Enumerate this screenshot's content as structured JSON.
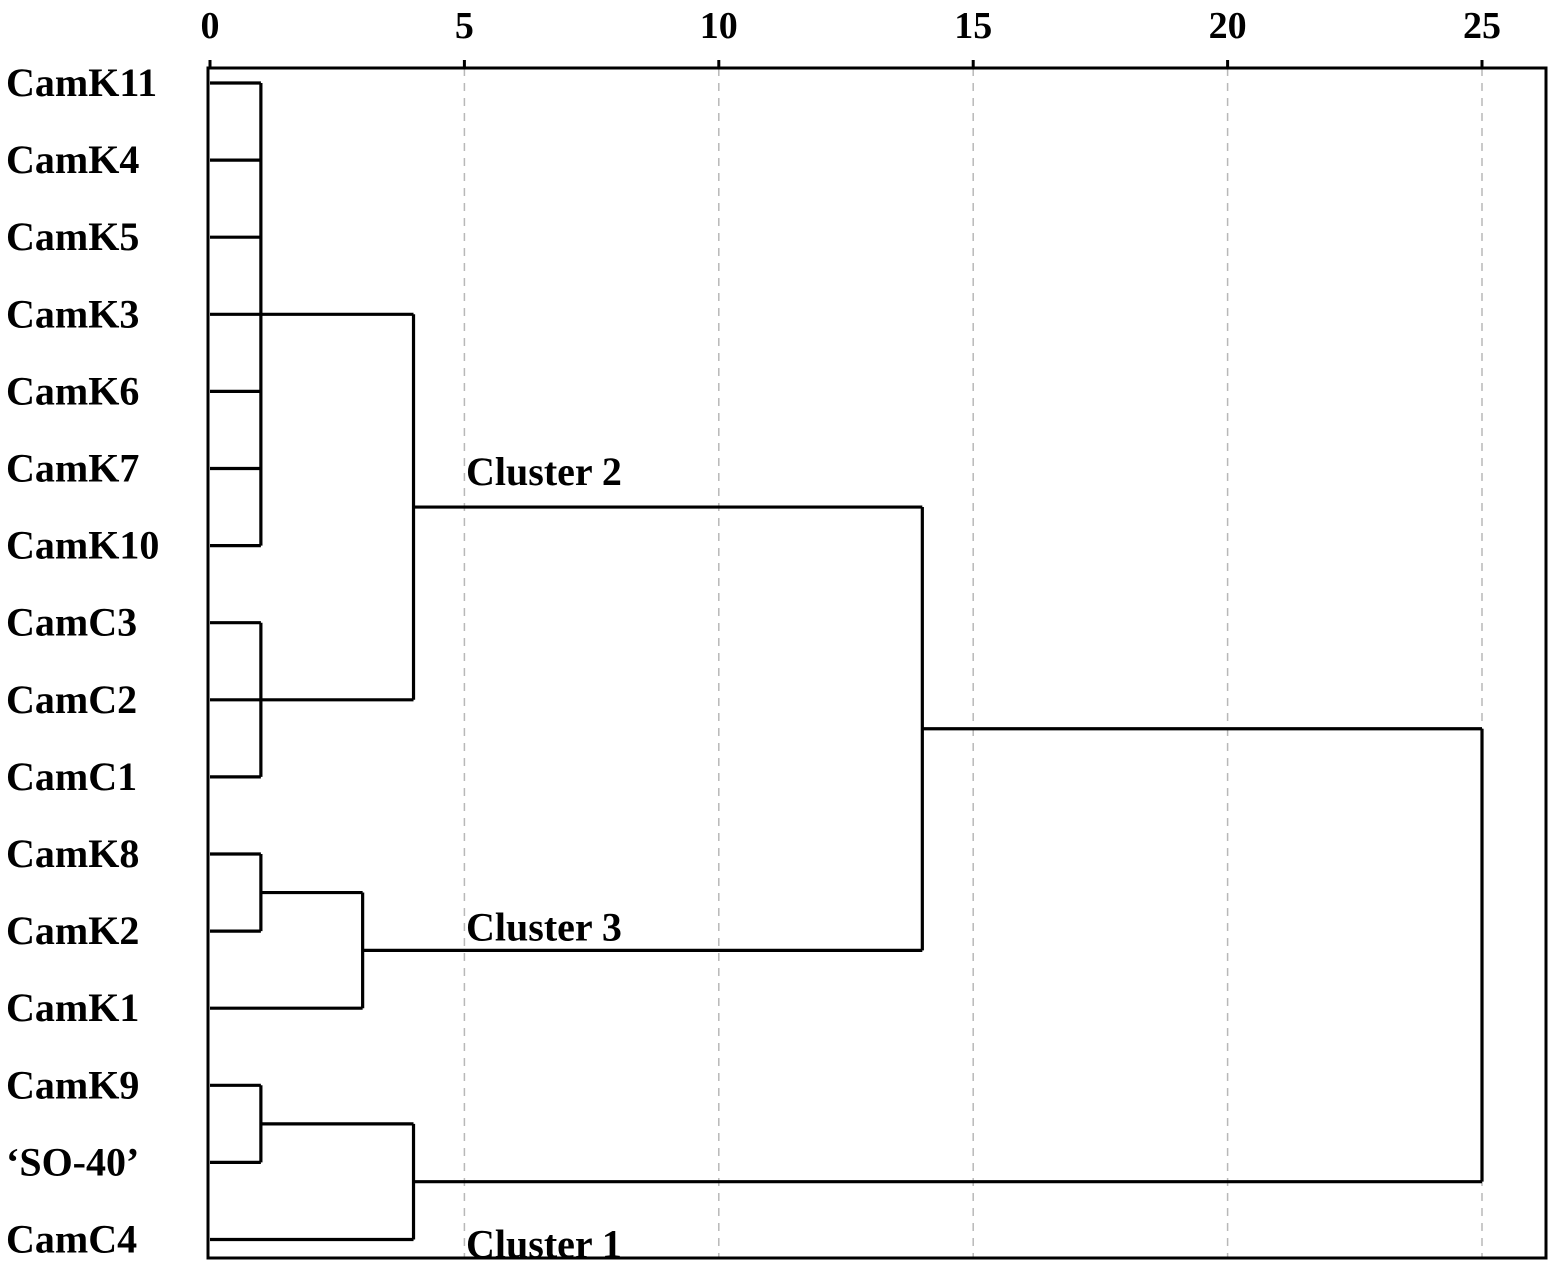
{
  "chart_data": {
    "type": "dendrogram",
    "xlim": [
      0,
      25
    ],
    "x_ticks": [
      "0",
      "5",
      "10",
      "15",
      "20",
      "25"
    ],
    "grid": "vertical dashed",
    "leaves": [
      "CamK11",
      "CamK4",
      "CamK5",
      "CamK3",
      "CamK6",
      "CamK7",
      "CamK10",
      "CamC3",
      "CamC2",
      "CamC1",
      "CamK8",
      "CamK2",
      "CamK1",
      "CamK9",
      "‘SO-40’",
      "CamC4"
    ],
    "merges": [
      {
        "id": "A",
        "height": 1,
        "children": [
          "CamK11",
          "CamK4",
          "CamK5",
          "CamK3",
          "CamK6",
          "CamK7",
          "CamK10"
        ]
      },
      {
        "id": "B",
        "height": 1,
        "children": [
          "CamC3",
          "CamC2",
          "CamC1"
        ]
      },
      {
        "id": "C",
        "height": 4,
        "children": [
          "A",
          "B"
        ]
      },
      {
        "id": "D",
        "height": 1,
        "children": [
          "CamK8",
          "CamK2"
        ]
      },
      {
        "id": "E",
        "height": 3,
        "children": [
          "D",
          "CamK1"
        ]
      },
      {
        "id": "F",
        "height": 14,
        "children": [
          "C",
          "E"
        ]
      },
      {
        "id": "G",
        "height": 1,
        "children": [
          "CamK9",
          "‘SO-40’"
        ]
      },
      {
        "id": "H",
        "height": 4,
        "children": [
          "G",
          "CamC4"
        ]
      },
      {
        "id": "I",
        "height": 25,
        "children": [
          "F",
          "H"
        ]
      }
    ],
    "annotations": [
      {
        "text": "Cluster 2",
        "node": "C"
      },
      {
        "text": "Cluster 3",
        "node": "E"
      },
      {
        "text": "Cluster 1",
        "node": "H"
      }
    ]
  }
}
